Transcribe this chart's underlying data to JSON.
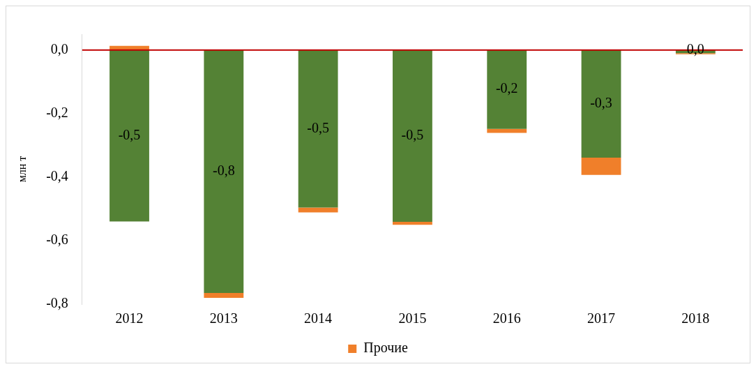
{
  "chart_data": {
    "type": "bar",
    "stacked": true,
    "ylabel": "млн т",
    "categories": [
      "2012",
      "2013",
      "2014",
      "2015",
      "2016",
      "2017",
      "2018"
    ],
    "series": [
      {
        "color": "#548235",
        "values": [
          -0.54,
          -0.765,
          -0.496,
          -0.541,
          -0.248,
          -0.339,
          -0.01
        ],
        "value_labels": [
          "-0,5",
          "-0,8",
          "-0,5",
          "-0,5",
          "-0,2",
          "-0,3",
          "0,0"
        ]
      },
      {
        "name": "Прочие",
        "color": "#f07f2a",
        "values": [
          0.013,
          -0.015,
          -0.015,
          -0.009,
          -0.013,
          -0.054,
          -0.003
        ]
      }
    ],
    "ylim": [
      -0.8,
      0.05
    ],
    "yticks": [
      {
        "value": -0.8,
        "label": "-0,8"
      },
      {
        "value": -0.6,
        "label": "-0,6"
      },
      {
        "value": -0.4,
        "label": "-0,4"
      },
      {
        "value": -0.2,
        "label": "-0,2"
      },
      {
        "value": 0,
        "label": "0,0"
      }
    ],
    "ref_lines": [
      {
        "axis": "y",
        "value": 0,
        "color": "#c00000"
      }
    ],
    "grid": false,
    "legend": "bottom"
  }
}
